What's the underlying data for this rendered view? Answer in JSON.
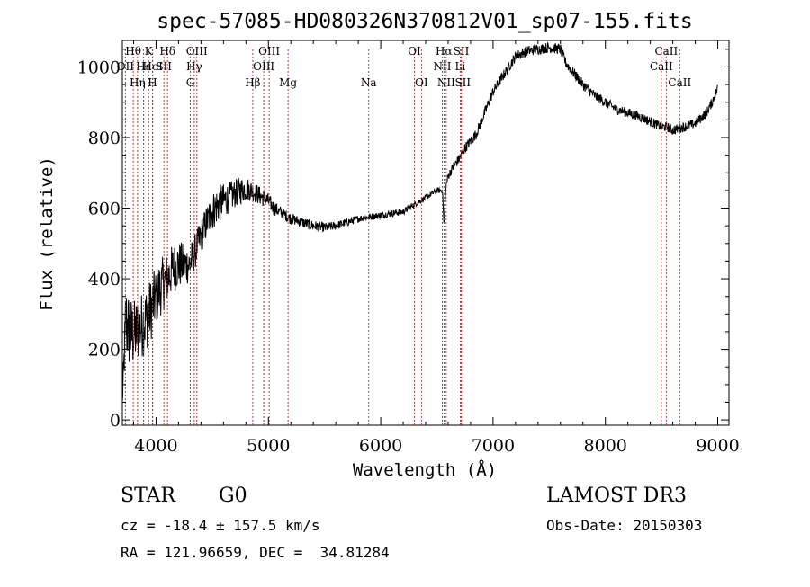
{
  "chart_data": {
    "type": "line",
    "title": "spec-57085-HD080326N370812V01_sp07-155.fits",
    "xlabel": "Wavelength (Å)",
    "ylabel": "Flux (relative)",
    "xlim": [
      3700,
      9100
    ],
    "ylim": [
      -15,
      1075
    ],
    "xticks": [
      4000,
      5000,
      6000,
      7000,
      8000,
      9000
    ],
    "yticks": [
      0,
      200,
      400,
      600,
      800,
      1000
    ],
    "grid": false,
    "series": [
      {
        "name": "flux",
        "x": [
          3700,
          3730,
          3760,
          3800,
          3850,
          3900,
          3950,
          4000,
          4050,
          4100,
          4150,
          4200,
          4250,
          4300,
          4350,
          4400,
          4450,
          4500,
          4550,
          4600,
          4650,
          4700,
          4750,
          4800,
          4850,
          4900,
          4950,
          5000,
          5050,
          5100,
          5150,
          5200,
          5300,
          5400,
          5500,
          5600,
          5700,
          5800,
          5900,
          6000,
          6100,
          6200,
          6300,
          6400,
          6500,
          6550,
          6563,
          6580,
          6600,
          6650,
          6700,
          6750,
          6800,
          6850,
          6900,
          6950,
          7000,
          7100,
          7200,
          7300,
          7400,
          7500,
          7600,
          7650,
          7700,
          7800,
          7900,
          8000,
          8100,
          8200,
          8300,
          8400,
          8500,
          8550,
          8600,
          8700,
          8800,
          8900,
          8950,
          9000
        ],
        "y": [
          50,
          280,
          250,
          240,
          260,
          280,
          310,
          350,
          380,
          400,
          430,
          440,
          440,
          440,
          480,
          520,
          560,
          590,
          610,
          620,
          630,
          640,
          650,
          655,
          650,
          640,
          630,
          620,
          600,
          590,
          580,
          570,
          560,
          550,
          545,
          550,
          560,
          570,
          575,
          580,
          585,
          590,
          610,
          630,
          650,
          650,
          550,
          660,
          690,
          720,
          740,
          770,
          790,
          810,
          850,
          890,
          930,
          980,
          1030,
          1045,
          1050,
          1055,
          1050,
          1010,
          990,
          950,
          920,
          900,
          880,
          870,
          860,
          845,
          830,
          830,
          820,
          830,
          840,
          870,
          900,
          940
        ],
        "noise": [
          10,
          120,
          110,
          100,
          95,
          95,
          90,
          85,
          80,
          75,
          70,
          70,
          60,
          55,
          50,
          50,
          50,
          55,
          55,
          50,
          45,
          40,
          40,
          35,
          30,
          28,
          25,
          22,
          20,
          18,
          16,
          16,
          15,
          15,
          14,
          12,
          12,
          10,
          10,
          10,
          10,
          10,
          8,
          8,
          8,
          8,
          0,
          10,
          12,
          14,
          15,
          15,
          15,
          15,
          15,
          15,
          15,
          15,
          15,
          15,
          15,
          15,
          15,
          15,
          15,
          15,
          15,
          15,
          14,
          14,
          14,
          14,
          14,
          14,
          14,
          14,
          14,
          14,
          14,
          14
        ]
      }
    ],
    "line_markers": [
      {
        "label": "Hθ",
        "x": 3797,
        "row": 0
      },
      {
        "label": "K",
        "x": 3934,
        "row": 0
      },
      {
        "label": "Hδ",
        "x": 4102,
        "row": 0
      },
      {
        "label": "OIII",
        "x": 4363,
        "row": 0
      },
      {
        "label": "OIII",
        "x": 5007,
        "row": 0
      },
      {
        "label": "OI",
        "x": 6300,
        "row": 0
      },
      {
        "label": "Hα",
        "x": 6563,
        "row": 0
      },
      {
        "label": "SII",
        "x": 6717,
        "row": 0
      },
      {
        "label": "CaII",
        "x": 8542,
        "row": 0
      },
      {
        "label": "OII",
        "x": 3727,
        "row": 1
      },
      {
        "label": "Hε",
        "x": 3889,
        "row": 1
      },
      {
        "label": "HeI",
        "x": 3970,
        "row": 1
      },
      {
        "label": "SII",
        "x": 4070,
        "row": 1
      },
      {
        "label": "Hγ",
        "x": 4340,
        "row": 1
      },
      {
        "label": "OIII",
        "x": 4959,
        "row": 1
      },
      {
        "label": "NII",
        "x": 6548,
        "row": 1
      },
      {
        "label": "Li",
        "x": 6708,
        "row": 1
      },
      {
        "label": "CaII",
        "x": 8498,
        "row": 1
      },
      {
        "label": "Hη",
        "x": 3835,
        "row": 2
      },
      {
        "label": "H",
        "x": 3968,
        "row": 2
      },
      {
        "label": "G",
        "x": 4305,
        "row": 2
      },
      {
        "label": "Hβ",
        "x": 4861,
        "row": 2
      },
      {
        "label": "Mg",
        "x": 5175,
        "row": 2
      },
      {
        "label": "Na",
        "x": 5893,
        "row": 2
      },
      {
        "label": "OI",
        "x": 6363,
        "row": 2
      },
      {
        "label": "NII",
        "x": 6583,
        "row": 2
      },
      {
        "label": "SII",
        "x": 6731,
        "row": 2
      },
      {
        "label": "CaII",
        "x": 8662,
        "row": 2
      }
    ]
  },
  "info": {
    "object_class": "STAR",
    "subclass": "G0",
    "survey": "LAMOST DR3",
    "cz": "cz = -18.4 ± 157.5 km/s",
    "obs_date": "Obs-Date: 20150303",
    "coords": "RA = 121.96659, DEC =  34.81284"
  }
}
